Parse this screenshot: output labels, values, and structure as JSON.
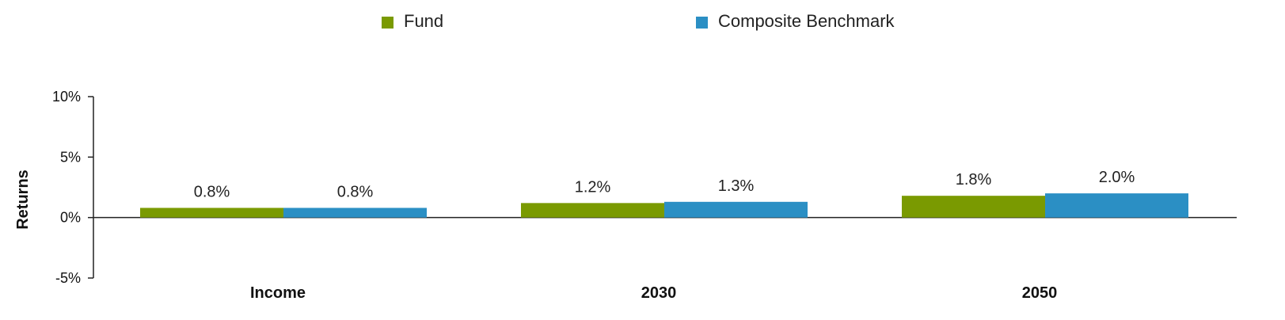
{
  "chart_data": {
    "type": "bar",
    "title": "",
    "xlabel": "",
    "ylabel": "Returns",
    "categories": [
      "Income",
      "2030",
      "2050"
    ],
    "series": [
      {
        "name": "Fund",
        "color": "#7a9a01",
        "values": [
          0.8,
          1.2,
          1.8
        ],
        "labels": [
          "0.8%",
          "1.2%",
          "1.8%"
        ]
      },
      {
        "name": "Composite Benchmark",
        "color": "#2b8fc4",
        "values": [
          0.8,
          1.3,
          2.0
        ],
        "labels": [
          "0.8%",
          "1.3%",
          "2.0%"
        ]
      }
    ],
    "ylim": [
      -5,
      10
    ],
    "yticks": [
      -5,
      0,
      5,
      10
    ],
    "ytick_labels": [
      "-5%",
      "0%",
      "5%",
      "10%"
    ],
    "grid": false,
    "legend_position": "top"
  }
}
